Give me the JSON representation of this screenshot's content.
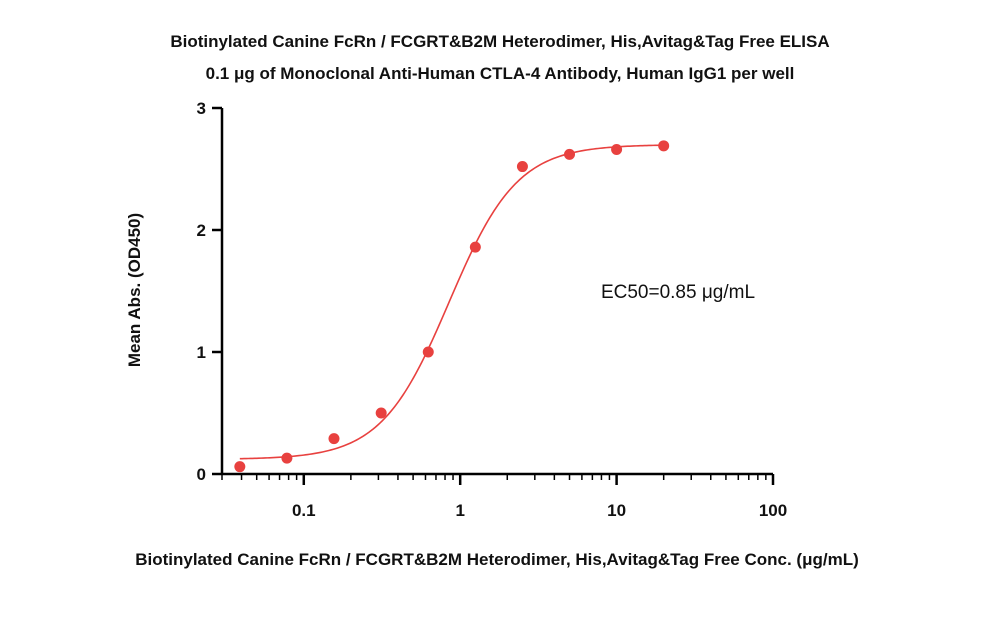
{
  "chart_data": {
    "type": "scatter",
    "title": "Biotinylated Canine FcRn / FCGRT&B2M Heterodimer, His,Avitag&Tag Free ELISA",
    "subtitle": "0.1 μg of Monoclonal Anti-Human CTLA-4 Antibody, Human IgG1 per well",
    "xlabel": "Biotinylated Canine FcRn / FCGRT&B2M Heterodimer, His,Avitag&Tag Free Conc. (μg/mL)",
    "ylabel": "Mean Abs. (OD450)",
    "xscale": "log",
    "xlim": [
      0.03,
      100
    ],
    "ylim": [
      0,
      3
    ],
    "x_ticks": [
      0.1,
      1,
      10,
      100
    ],
    "x_tick_labels": [
      "0.1",
      "1",
      "10",
      "100"
    ],
    "y_ticks": [
      0,
      1,
      2,
      3
    ],
    "y_tick_labels": [
      "0",
      "1",
      "2",
      "3"
    ],
    "grid": false,
    "series": [
      {
        "color": "#e8413f",
        "x": [
          0.039,
          0.078,
          0.156,
          0.3125,
          0.625,
          1.25,
          2.5,
          5,
          10,
          20
        ],
        "y": [
          0.06,
          0.13,
          0.29,
          0.5,
          1.0,
          1.86,
          2.52,
          2.62,
          2.66,
          2.69
        ],
        "fit": {
          "model": "4PL",
          "bottom": 0.12,
          "top": 2.7,
          "ec50": 0.85,
          "hill": 2.0
        }
      }
    ],
    "annotation": "EC50=0.85 μg/mL"
  }
}
